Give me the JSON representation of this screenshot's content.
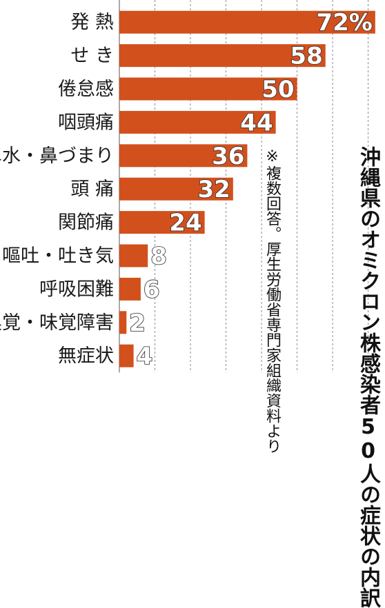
{
  "chart_data": {
    "type": "bar",
    "orientation": "horizontal",
    "title": "沖縄県のオミクロン株感染者50人の症状の内訳",
    "note": "※複数回答。厚生労働省専門家組織資料より",
    "categories": [
      "発 熱",
      "せ き",
      "倦怠感",
      "咽頭痛",
      "鼻水・鼻づまり",
      "頭 痛",
      "関節痛",
      "嘔吐・吐き気",
      "呼吸困難",
      "嗅覚・味覚障害",
      "無症状"
    ],
    "values": [
      72,
      58,
      50,
      44,
      36,
      32,
      24,
      8,
      6,
      2,
      4
    ],
    "value_labels": [
      "72%",
      "58",
      "50",
      "44",
      "36",
      "32",
      "24",
      "8",
      "6",
      "2",
      "4"
    ],
    "xlim": [
      0,
      73
    ],
    "grid": true,
    "bar_color": "#d2501c",
    "grid_color": "#8c8c8c"
  }
}
